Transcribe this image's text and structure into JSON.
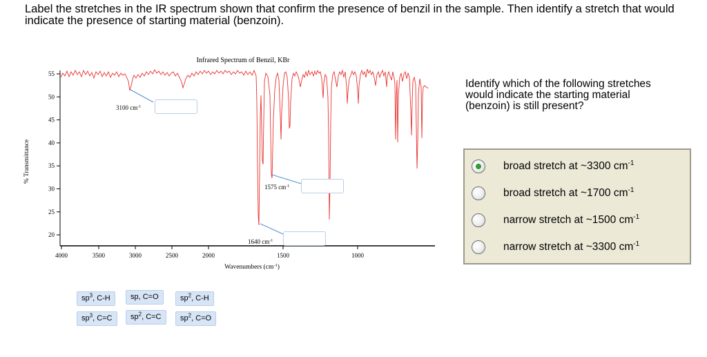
{
  "question": "Label the stretches in the IR spectrum shown that confirm the presence of benzil in the sample. Then identify a stretch that would indicate the presence of starting material (benzoin).",
  "spectrum": {
    "title": "Infrared Spectrum of Benzil, KBr",
    "xlabel_main": "Wavenumbers (cm",
    "xlabel_sup": "-1",
    "xlabel_end": ")",
    "ylabel": "% Transmittance",
    "x_ticks": [
      "4000",
      "3500",
      "3000",
      "2500",
      "2000",
      "1500",
      "1000"
    ],
    "y_ticks": [
      "55",
      "50",
      "45",
      "40",
      "35",
      "30",
      "25",
      "20"
    ],
    "annotations": [
      {
        "text": "3100 cm",
        "sup": "-1"
      },
      {
        "text": "1575 cm",
        "sup": "-1"
      },
      {
        "text": "1640 cm",
        "sup": "-1"
      }
    ],
    "line_color": "#e8322e",
    "leader_color": "#4a90d9"
  },
  "drag_chips": [
    {
      "pre": "sp",
      "sup": "3",
      "post": ", C-H"
    },
    {
      "pre": "sp, C=O",
      "sup": "",
      "post": ""
    },
    {
      "pre": "sp",
      "sup": "2",
      "post": ", C-H"
    },
    {
      "pre": "sp",
      "sup": "3",
      "post": ", C=C"
    },
    {
      "pre": "sp",
      "sup": "2",
      "post": ", C=C"
    },
    {
      "pre": "sp",
      "sup": "2",
      "post": ", C=O"
    }
  ],
  "right_panel": {
    "title": "Identify which of the following stretches would indicate the starting material (benzoin) is still present?",
    "selected_index": 0,
    "options": [
      {
        "text": "broad stretch at ~3300 cm",
        "sup": "-1"
      },
      {
        "text": "broad stretch at ~1700 cm",
        "sup": "-1"
      },
      {
        "text": "narrow stretch at ~1500 cm",
        "sup": "-1"
      },
      {
        "text": "narrow stretch at ~3300 cm",
        "sup": "-1"
      }
    ],
    "radio_selected_color": "#2fa02f"
  }
}
